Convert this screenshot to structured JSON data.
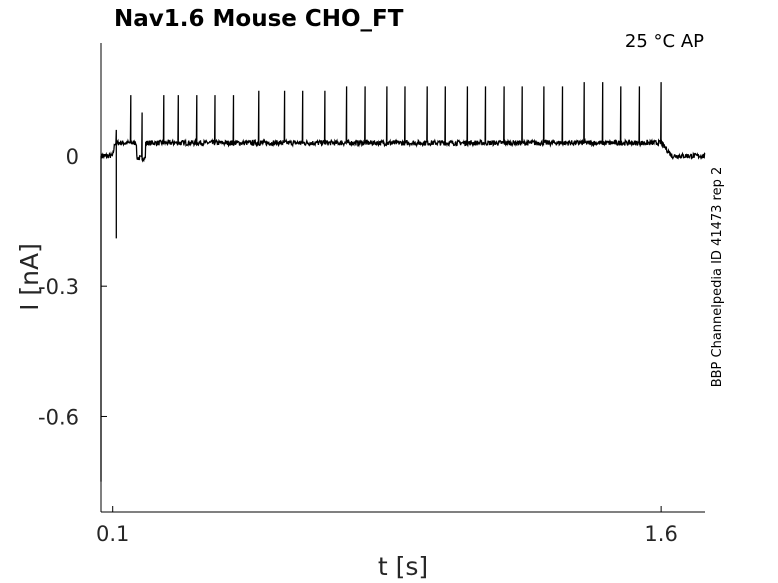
{
  "chart_data": {
    "type": "line",
    "title": "Nav1.6  Mouse  CHO_FT",
    "condition_label": "25 °C  AP",
    "side_label": "BBP Channelpedia ID 41473 rep 2",
    "xlabel": "t [s]",
    "ylabel": "I [nA]",
    "xlim": [
      0.068,
      1.72
    ],
    "ylim": [
      -0.82,
      0.26
    ],
    "x_ticks": [
      0.1,
      1.6
    ],
    "x_tick_labels": [
      "0.1",
      "1.6"
    ],
    "y_ticks": [
      0,
      -0.3,
      -0.6
    ],
    "y_tick_labels": [
      "0",
      "-0.3",
      "-0.6"
    ],
    "grid": false,
    "legend": "none",
    "line_color": "#000000",
    "baseline_level": 0.0,
    "plateau_level": 0.03,
    "plateau_start": 0.1,
    "plateau_end": 1.6,
    "initial_transient": {
      "x": 0.068,
      "y": -0.75
    },
    "events": [
      {
        "x": 0.11,
        "peak": 0.06,
        "trough": -0.19
      },
      {
        "x": 0.18,
        "peak": 0.1,
        "trough": -0.01
      }
    ],
    "spike_times": [
      0.15,
      0.24,
      0.28,
      0.33,
      0.38,
      0.43,
      0.5,
      0.57,
      0.62,
      0.68,
      0.74,
      0.79,
      0.85,
      0.9,
      0.96,
      1.01,
      1.07,
      1.12,
      1.17,
      1.22,
      1.28,
      1.33,
      1.39,
      1.44,
      1.49,
      1.54,
      1.6
    ],
    "spike_peaks": [
      0.14,
      0.14,
      0.14,
      0.14,
      0.14,
      0.14,
      0.15,
      0.15,
      0.15,
      0.15,
      0.16,
      0.16,
      0.16,
      0.16,
      0.16,
      0.16,
      0.16,
      0.16,
      0.16,
      0.16,
      0.16,
      0.16,
      0.17,
      0.17,
      0.16,
      0.16,
      0.17
    ]
  }
}
